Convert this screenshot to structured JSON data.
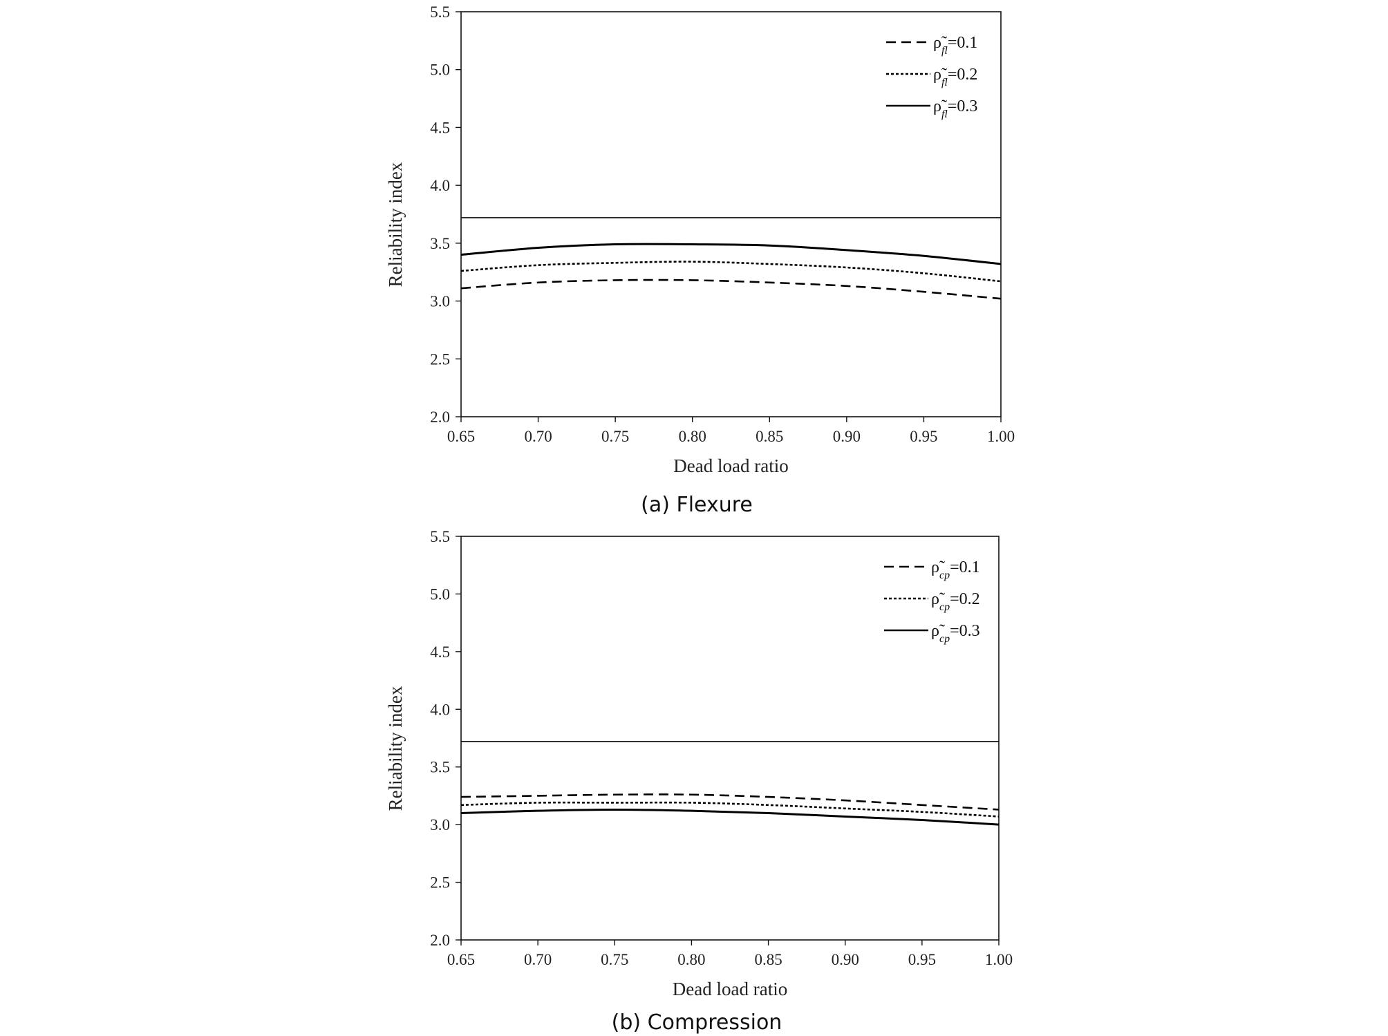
{
  "chart_data": [
    {
      "type": "line",
      "caption": "(a) Flexure",
      "xlabel": "Dead load ratio",
      "ylabel": "Reliability index",
      "xlim": [
        0.65,
        1.0
      ],
      "ylim": [
        2.0,
        5.5
      ],
      "x_ticks": [
        "0.65",
        "0.70",
        "0.75",
        "0.80",
        "0.85",
        "0.90",
        "0.95",
        "1.00"
      ],
      "y_ticks": [
        "2.0",
        "2.5",
        "3.0",
        "3.5",
        "4.0",
        "4.5",
        "5.0",
        "5.5"
      ],
      "target_line": 3.72,
      "x": [
        0.65,
        0.7,
        0.75,
        0.8,
        0.85,
        0.9,
        0.95,
        1.0
      ],
      "series": [
        {
          "name": "ρ̃fl=0.1",
          "symbol": "ρ̃",
          "subscript": "fl",
          "value_text": "=0.1",
          "style": "dashed",
          "values": [
            3.11,
            3.16,
            3.18,
            3.18,
            3.16,
            3.13,
            3.08,
            3.02
          ]
        },
        {
          "name": "ρ̃fl=0.2",
          "symbol": "ρ̃",
          "subscript": "fl",
          "value_text": "=0.2",
          "style": "dotted",
          "values": [
            3.26,
            3.31,
            3.33,
            3.34,
            3.32,
            3.29,
            3.24,
            3.17
          ]
        },
        {
          "name": "ρ̃fl=0.3",
          "symbol": "ρ̃",
          "subscript": "fl",
          "value_text": "=0.3",
          "style": "solid",
          "values": [
            3.4,
            3.46,
            3.49,
            3.49,
            3.48,
            3.44,
            3.39,
            3.32
          ]
        }
      ]
    },
    {
      "type": "line",
      "caption": "(b) Compression",
      "xlabel": "Dead load ratio",
      "ylabel": "Reliability index",
      "xlim": [
        0.65,
        1.0
      ],
      "ylim": [
        2.0,
        5.5
      ],
      "x_ticks": [
        "0.65",
        "0.70",
        "0.75",
        "0.80",
        "0.85",
        "0.90",
        "0.95",
        "1.00"
      ],
      "y_ticks": [
        "2.0",
        "2.5",
        "3.0",
        "3.5",
        "4.0",
        "4.5",
        "5.0",
        "5.5"
      ],
      "target_line": 3.72,
      "x": [
        0.65,
        0.7,
        0.75,
        0.8,
        0.85,
        0.9,
        0.95,
        1.0
      ],
      "series": [
        {
          "name": "ρ̃cp=0.1",
          "symbol": "ρ̃",
          "subscript": "cp",
          "value_text": "=0.1",
          "style": "dashed",
          "values": [
            3.24,
            3.25,
            3.26,
            3.26,
            3.24,
            3.21,
            3.17,
            3.13
          ]
        },
        {
          "name": "ρ̃cp=0.2",
          "symbol": "ρ̃",
          "subscript": "cp",
          "value_text": "=0.2",
          "style": "dotted",
          "values": [
            3.17,
            3.19,
            3.19,
            3.19,
            3.17,
            3.14,
            3.11,
            3.07
          ]
        },
        {
          "name": "ρ̃cp=0.3",
          "symbol": "ρ̃",
          "subscript": "cp",
          "value_text": "=0.3",
          "style": "solid",
          "values": [
            3.1,
            3.12,
            3.13,
            3.12,
            3.1,
            3.07,
            3.04,
            3.0
          ]
        }
      ]
    }
  ]
}
